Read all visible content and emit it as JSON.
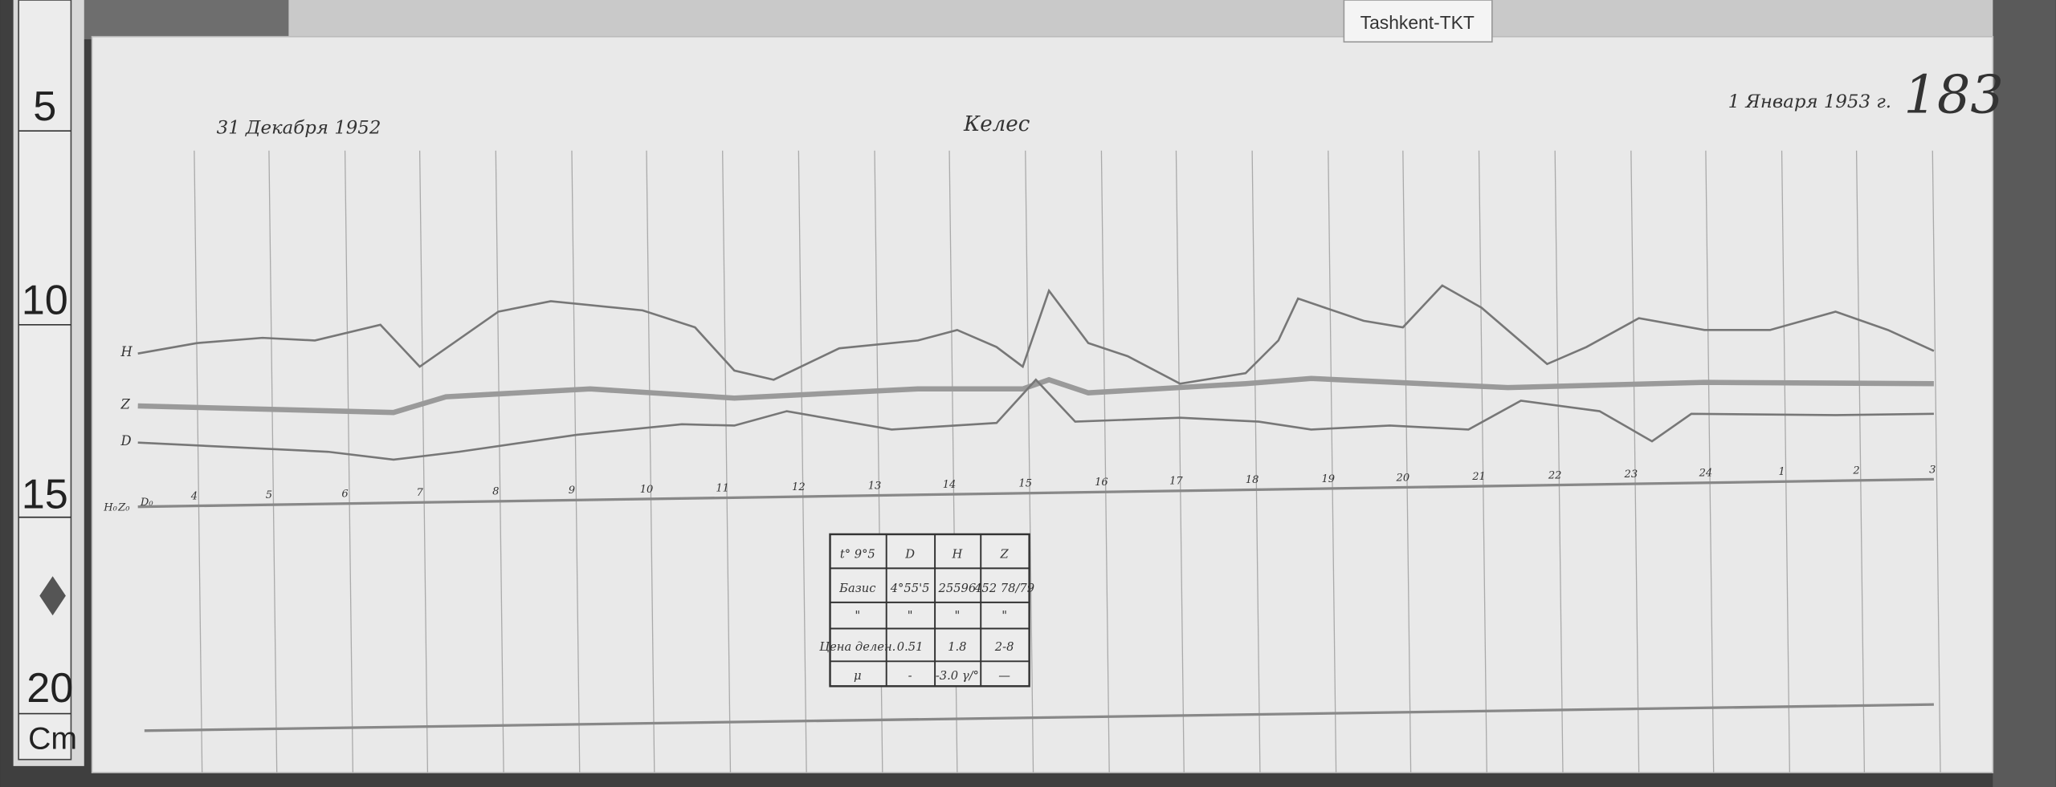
{
  "station_tag": "Tashkent-TKT",
  "header": {
    "date_start": "31 Декабря 1952",
    "station": "Келес",
    "date_end": "1 Января 1953 г.",
    "sheet_number": "183"
  },
  "ruler": {
    "marks": [
      "5",
      "10",
      "15",
      "20"
    ],
    "unit": "Cm"
  },
  "trace_labels": {
    "h": "H",
    "z": "Z",
    "d": "D"
  },
  "baseline_labels": {
    "h0": "H₀",
    "z0": "Z₀",
    "d0": "D₀"
  },
  "hour_labels": [
    "4",
    "5",
    "6",
    "7",
    "8",
    "9",
    "10",
    "11",
    "12",
    "13",
    "14",
    "15",
    "16",
    "17",
    "18",
    "19",
    "20",
    "21",
    "22",
    "23",
    "24",
    "1",
    "2",
    "3"
  ],
  "table": {
    "header": [
      "t° 9°5",
      "D",
      "H",
      "Z"
    ],
    "rows": [
      [
        "Базис",
        "4°55'5",
        "25596",
        "452 78/79"
      ],
      [
        "\"",
        "\"",
        "\"",
        "\""
      ],
      [
        "Цена делен.",
        "0.51",
        "1.8",
        "2-8"
      ],
      [
        "μ",
        "-",
        "-3.0 γ/°",
        "—"
      ]
    ]
  },
  "colors": {
    "background": "#3a3a3a",
    "paper": "#e9e9e9",
    "trace": "#6a6a6a"
  }
}
